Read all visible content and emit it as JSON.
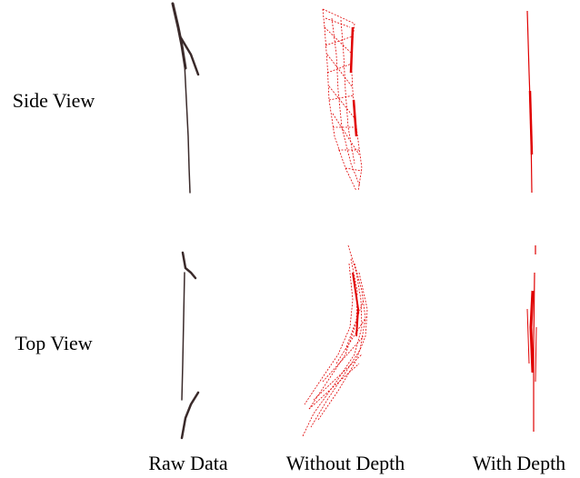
{
  "row_labels": [
    "Side View",
    "Top View"
  ],
  "column_labels": [
    "Raw Data",
    "Without Depth",
    "With Depth"
  ]
}
